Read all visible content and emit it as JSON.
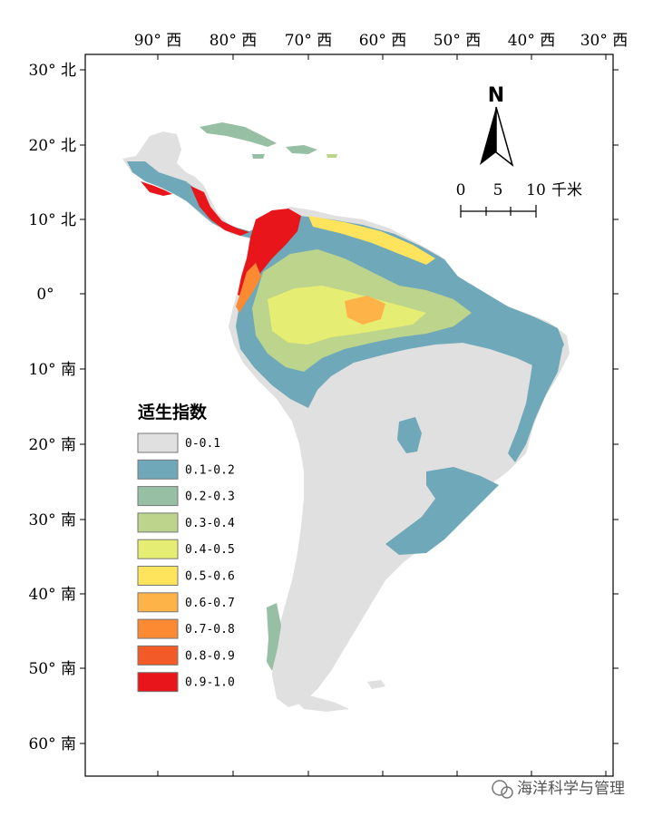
{
  "map": {
    "longitude_labels": [
      "90° 西",
      "80° 西",
      "70° 西",
      "60° 西",
      "50° 西",
      "40° 西",
      "30° 西"
    ],
    "latitude_labels": [
      "30° 北",
      "20° 北",
      "10° 北",
      "0°",
      "10° 南",
      "20° 南",
      "30° 南",
      "40° 南",
      "50° 南",
      "60° 南"
    ]
  },
  "north_arrow": {
    "letter": "N"
  },
  "scale_bar": {
    "labels": [
      "0",
      "5",
      "10"
    ],
    "unit": "千米"
  },
  "legend": {
    "title": "适生指数",
    "items": [
      {
        "label": "0-0.1",
        "color": "#e0e0e0"
      },
      {
        "label": "0.1-0.2",
        "color": "#6fa8b8"
      },
      {
        "label": "0.2-0.3",
        "color": "#96bfa4"
      },
      {
        "label": "0.3-0.4",
        "color": "#bcd48b"
      },
      {
        "label": "0.4-0.5",
        "color": "#e6ed73"
      },
      {
        "label": "0.5-0.6",
        "color": "#fde45c"
      },
      {
        "label": "0.6-0.7",
        "color": "#fdb348"
      },
      {
        "label": "0.7-0.8",
        "color": "#fb8a33"
      },
      {
        "label": "0.8-0.9",
        "color": "#f25a27"
      },
      {
        "label": "0.9-1.0",
        "color": "#e8161b"
      }
    ]
  },
  "watermark": {
    "text": "海洋科学与管理"
  }
}
